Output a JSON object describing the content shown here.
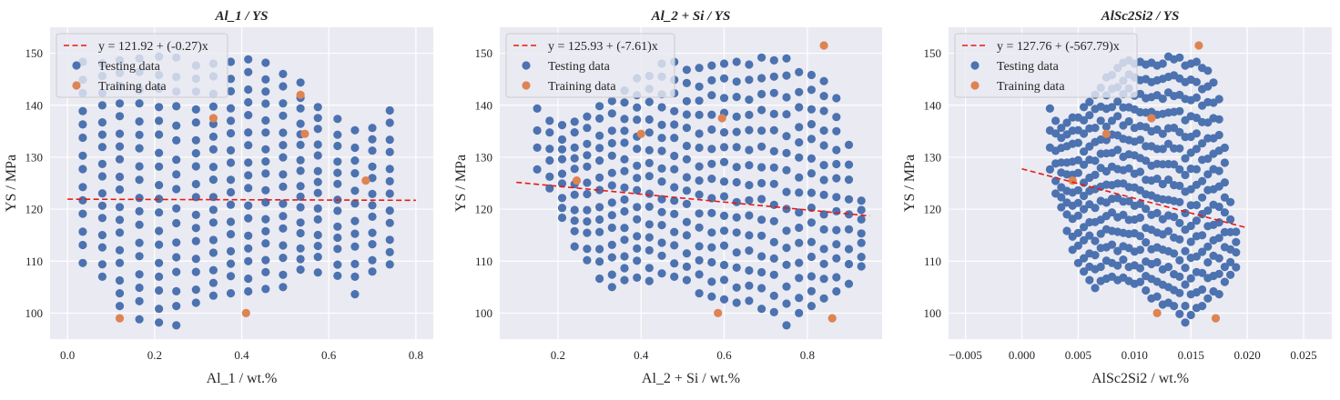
{
  "chart_data": [
    {
      "type": "scatter",
      "title": "Al_1 / YS",
      "xlabel": "Al_1 / wt.%",
      "ylabel": "YS / MPa",
      "xlim": [
        -0.04,
        0.84
      ],
      "ylim": [
        95,
        155
      ],
      "xticks": [
        0.0,
        0.2,
        0.4,
        0.6,
        0.8
      ],
      "xtick_labels": [
        "0.0",
        "0.2",
        "0.4",
        "0.6",
        "0.8"
      ],
      "yticks": [
        100,
        110,
        120,
        130,
        140,
        150
      ],
      "ytick_labels": [
        "100",
        "110",
        "120",
        "130",
        "140",
        "150"
      ],
      "fit_line": {
        "label": "y = 121.92 + (-0.27)x",
        "intercept": 121.92,
        "slope": -0.27,
        "x_range": [
          0.0,
          0.8
        ]
      },
      "legend_position": "top-left",
      "grid": true,
      "series": [
        {
          "name": "Testing data",
          "generator": {
            "columns": [
              0.035,
              0.08,
              0.12,
              0.165,
              0.21,
              0.25,
              0.295,
              0.335,
              0.375,
              0.415,
              0.455,
              0.495,
              0.535,
              0.575,
              0.62,
              0.66,
              0.7,
              0.74
            ],
            "ymin": [
              110,
              107,
              101,
              99,
              98,
              98,
              102,
              103,
              104,
              104,
              105,
              105,
              108,
              108,
              107,
              104,
              108,
              109
            ],
            "ymax": [
              148,
              148,
              149,
              149,
              149,
              149,
              148,
              148,
              148,
              149,
              148,
              146,
              144,
              140,
              137,
              135,
              136,
              139
            ],
            "count": [
              14,
              16,
              18,
              18,
              18,
              17,
              17,
              17,
              17,
              17,
              17,
              16,
              16,
              14,
              13,
              12,
              12,
              12
            ]
          }
        },
        {
          "name": "Training data",
          "points": [
            [
              0.12,
              99
            ],
            [
              0.335,
              137.5
            ],
            [
              0.41,
              100
            ],
            [
              0.535,
              142
            ],
            [
              0.545,
              134.5
            ],
            [
              0.685,
              125.5
            ]
          ]
        }
      ]
    },
    {
      "type": "scatter",
      "title": "Al_2 + Si / YS",
      "xlabel": "Al_2 + Si / wt.%",
      "ylabel": "YS / MPa",
      "xlim": [
        0.06,
        0.98
      ],
      "ylim": [
        95,
        155
      ],
      "xticks": [
        0.2,
        0.4,
        0.6,
        0.8
      ],
      "xtick_labels": [
        "0.2",
        "0.4",
        "0.6",
        "0.8"
      ],
      "yticks": [
        100,
        110,
        120,
        130,
        140,
        150
      ],
      "ytick_labels": [
        "100",
        "110",
        "120",
        "130",
        "140",
        "150"
      ],
      "fit_line": {
        "label": "y = 125.93 + (-7.61)x",
        "intercept": 125.93,
        "slope": -7.61,
        "x_range": [
          0.1,
          0.95
        ]
      },
      "legend_position": "top-left",
      "grid": true,
      "series": [
        {
          "name": "Testing data",
          "generator": {
            "columns": [
              0.15,
              0.18,
              0.21,
              0.24,
              0.27,
              0.3,
              0.33,
              0.36,
              0.39,
              0.42,
              0.45,
              0.48,
              0.51,
              0.54,
              0.57,
              0.6,
              0.63,
              0.66,
              0.69,
              0.72,
              0.75,
              0.78,
              0.81,
              0.84,
              0.87,
              0.9,
              0.93
            ],
            "ymin": [
              128,
              124,
              118,
              113,
              110,
              107,
              105,
              106,
              107,
              106,
              108,
              107,
              106,
              104,
              103,
              103,
              102,
              102,
              101,
              100,
              98,
              100,
              101,
              103,
              104,
              106,
              109
            ],
            "ymax": [
              139,
              137,
              136,
              137,
              138,
              140,
              141,
              143,
              145,
              146,
              148,
              148,
              147,
              147,
              148,
              148,
              148,
              148,
              149,
              149,
              149,
              146,
              146,
              145,
              141,
              132,
              122
            ],
            "count": [
              4,
              6,
              9,
              11,
              12,
              13,
              14,
              15,
              15,
              15,
              15,
              15,
              15,
              15,
              15,
              15,
              15,
              15,
              15,
              15,
              15,
              15,
              15,
              14,
              13,
              9,
              7
            ]
          }
        },
        {
          "name": "Training data",
          "points": [
            [
              0.245,
              125.5
            ],
            [
              0.4,
              134.5
            ],
            [
              0.585,
              100
            ],
            [
              0.595,
              137.5
            ],
            [
              0.84,
              151.5
            ],
            [
              0.86,
              99
            ]
          ]
        }
      ]
    },
    {
      "type": "scatter",
      "title": "AlSc2Si2 / YS",
      "xlabel": "AlSc2Si2 / wt.%",
      "ylabel": "YS / MPa",
      "xlim": [
        -0.0065,
        0.0275
      ],
      "ylim": [
        95,
        155
      ],
      "xticks": [
        -0.005,
        0.0,
        0.005,
        0.01,
        0.015,
        0.02,
        0.025
      ],
      "xtick_labels": [
        "−0.005",
        "0.000",
        "0.005",
        "0.010",
        "0.015",
        "0.020",
        "0.025"
      ],
      "yticks": [
        100,
        110,
        120,
        130,
        140,
        150
      ],
      "ytick_labels": [
        "100",
        "110",
        "120",
        "130",
        "140",
        "150"
      ],
      "fit_line": {
        "label": "y = 127.76 + (-567.79)x",
        "intercept": 127.76,
        "slope": -567.79,
        "x_range": [
          0.0,
          0.02
        ]
      },
      "legend_position": "top-left",
      "grid": true,
      "series": [
        {
          "name": "Testing data",
          "generator": {
            "columns": [
              0.0025,
              0.003,
              0.0035,
              0.004,
              0.0045,
              0.005,
              0.0055,
              0.006,
              0.0065,
              0.007,
              0.0075,
              0.008,
              0.0085,
              0.009,
              0.0095,
              0.01,
              0.0105,
              0.011,
              0.0115,
              0.012,
              0.0125,
              0.013,
              0.0135,
              0.014,
              0.0145,
              0.015,
              0.0155,
              0.016,
              0.0165,
              0.017,
              0.0175,
              0.018,
              0.0185,
              0.019
            ],
            "ymin": [
              128,
              123,
              120,
              116,
              112,
              110,
              108,
              106,
              105,
              106,
              107,
              107,
              106,
              107,
              106,
              106,
              106,
              104,
              103,
              103,
              102,
              102,
              101,
              100,
              98,
              100,
              101,
              101,
              103,
              104,
              104,
              106,
              107,
              109
            ],
            "ymax": [
              139,
              137,
              136,
              137,
              138,
              138,
              140,
              141,
              142,
              143,
              145,
              146,
              147,
              148,
              149,
              148,
              148,
              148,
              148,
              148,
              148,
              149,
              149,
              149,
              148,
              148,
              148,
              147,
              147,
              144,
              141,
              132,
              121,
              116
            ],
            "count": [
              4,
              6,
              8,
              9,
              10,
              11,
              12,
              13,
              13,
              13,
              14,
              14,
              14,
              15,
              15,
              15,
              15,
              15,
              15,
              15,
              15,
              15,
              15,
              15,
              15,
              15,
              15,
              14,
              14,
              13,
              12,
              9,
              6,
              4
            ]
          }
        },
        {
          "name": "Training data",
          "points": [
            [
              0.0045,
              125.5
            ],
            [
              0.0075,
              134.5
            ],
            [
              0.0115,
              137.5
            ],
            [
              0.012,
              100
            ],
            [
              0.0157,
              151.5
            ],
            [
              0.0172,
              99
            ]
          ]
        }
      ]
    }
  ],
  "colors": {
    "testing": "#4c72b0",
    "training": "#dd8452",
    "fit": "#e8190f",
    "panel_bg": "#eaeaf2",
    "grid": "#ffffff",
    "text": "#262626"
  }
}
